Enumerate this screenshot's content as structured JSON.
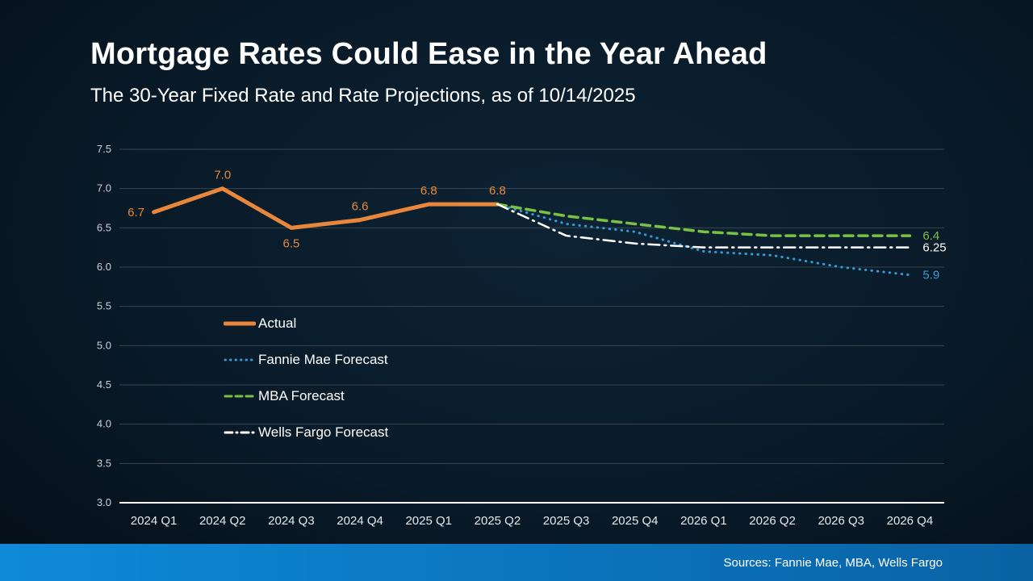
{
  "header": {
    "title": "Mortgage Rates Could Ease in the Year Ahead",
    "subtitle": "The 30-Year Fixed Rate and Rate Projections, as of 10/14/2025"
  },
  "footer": {
    "sources": "Sources: Fannie Mae, MBA, Wells Fargo"
  },
  "colors": {
    "background_dark": "#081725",
    "footer_blue": "#0c7fc9",
    "grid": "#3a444e",
    "axis_line": "#ffffff",
    "y_label": "#c9d1d8",
    "x_label": "#e4e9ee"
  },
  "chart_data": {
    "type": "line",
    "title": "The 30-Year Fixed Rate and Rate Projections, as of 10/14/2025",
    "categories": [
      "2024 Q1",
      "2024 Q2",
      "2024 Q3",
      "2024 Q4",
      "2025 Q1",
      "2025 Q2",
      "2025 Q3",
      "2025 Q4",
      "2026 Q1",
      "2026 Q2",
      "2026 Q3",
      "2026 Q4"
    ],
    "ylim": [
      3.0,
      7.5
    ],
    "ytick_step": 0.5,
    "grid": true,
    "legend_position": "inside-left",
    "series": [
      {
        "name": "Actual",
        "color": "#E8873B",
        "style": "solid",
        "width": 5,
        "x": [
          0,
          1,
          2,
          3,
          4,
          5
        ],
        "values": [
          6.7,
          7.0,
          6.5,
          6.6,
          6.8,
          6.8
        ],
        "point_labels": [
          "6.7",
          "7.0",
          "6.5",
          "6.6",
          "6.8",
          "6.8"
        ],
        "label_placement": [
          "left",
          "above",
          "below",
          "above",
          "above",
          "above"
        ]
      },
      {
        "name": "Fannie Mae Forecast",
        "color": "#2F9CD9",
        "style": "dotted",
        "width": 3,
        "x": [
          5,
          6,
          7,
          8,
          9,
          10,
          11
        ],
        "values": [
          6.8,
          6.55,
          6.45,
          6.2,
          6.15,
          6.0,
          5.9
        ],
        "end_label": "5.9"
      },
      {
        "name": "MBA Forecast",
        "color": "#7AC143",
        "style": "dashed",
        "width": 3.5,
        "x": [
          5,
          6,
          7,
          8,
          9,
          10,
          11
        ],
        "values": [
          6.8,
          6.65,
          6.55,
          6.45,
          6.4,
          6.4,
          6.4
        ],
        "end_label": "6.4"
      },
      {
        "name": "Wells Fargo Forecast",
        "color": "#FFFFFF",
        "style": "dashdot",
        "width": 2.5,
        "x": [
          5,
          6,
          7,
          8,
          9,
          10,
          11
        ],
        "values": [
          6.8,
          6.4,
          6.3,
          6.25,
          6.25,
          6.25,
          6.25
        ],
        "end_label": "6.25"
      }
    ]
  }
}
